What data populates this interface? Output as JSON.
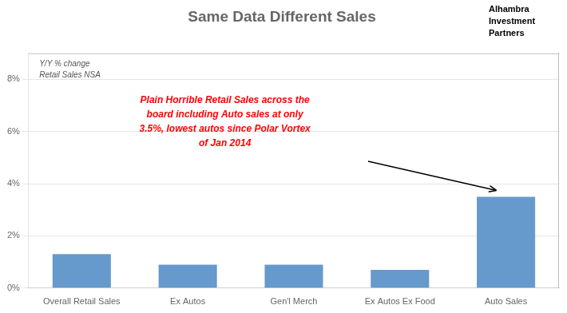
{
  "chart_data": {
    "type": "bar",
    "title": "Same Data Different Sales",
    "subtitle": [
      "Y/Y % change",
      "Retail Sales NSA"
    ],
    "categories": [
      "Overall Retail Sales",
      "Ex Autos",
      "Gen'l Merch",
      "Ex Autos Ex Food",
      "Auto Sales"
    ],
    "values": [
      0.013,
      0.009,
      0.009,
      0.007,
      0.035
    ],
    "color": "#6699CC",
    "ylim": [
      0,
      0.09
    ],
    "yticks": [
      {
        "value": 0.0,
        "label": "0%"
      },
      {
        "value": 0.02,
        "label": "2%"
      },
      {
        "value": 0.04,
        "label": "4%"
      },
      {
        "value": 0.06,
        "label": "6%"
      },
      {
        "value": 0.08,
        "label": "8%"
      }
    ],
    "grid": true,
    "annotations": [
      {
        "text": "Plain Horrible Retail Sales across the\nboard including Auto sales at only\n3.5%, lowest autos since Polar Vortex\nof Jan 2014",
        "color": "red"
      },
      {
        "text": "Alhambra\nInvestment\nPartners"
      }
    ]
  }
}
